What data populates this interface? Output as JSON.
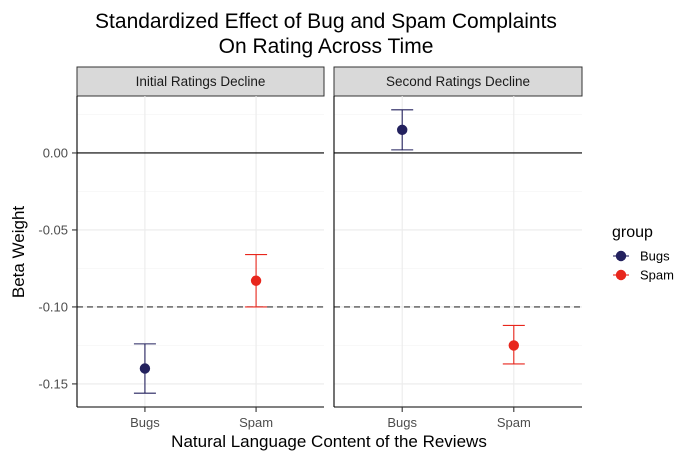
{
  "chart_data": {
    "type": "errorbar",
    "title": "Standardized Effect of Bug and Spam Complaints",
    "subtitle": "On Rating Across Time",
    "xlabel": "Natural Language Content of the Reviews",
    "ylabel": "Beta Weight",
    "categories": [
      "Bugs",
      "Spam"
    ],
    "ylim": [
      -0.165,
      0.037
    ],
    "yticks": [
      0.0,
      -0.05,
      -0.1,
      -0.15
    ],
    "ytick_labels": [
      "0.00",
      "-0.05",
      "-0.10",
      "-0.15"
    ],
    "reference_lines": {
      "solid": 0.0,
      "dashed": -0.1
    },
    "facets": [
      {
        "label": "Initial Ratings Decline",
        "points": [
          {
            "group": "Bugs",
            "value": -0.14,
            "lower": -0.156,
            "upper": -0.124
          },
          {
            "group": "Spam",
            "value": -0.083,
            "lower": -0.1,
            "upper": -0.066
          }
        ]
      },
      {
        "label": "Second Ratings Decline",
        "points": [
          {
            "group": "Bugs",
            "value": 0.015,
            "lower": 0.002,
            "upper": 0.028
          },
          {
            "group": "Spam",
            "value": -0.125,
            "lower": -0.137,
            "upper": -0.112
          }
        ]
      }
    ],
    "legend": {
      "title": "group",
      "position": "right",
      "items": [
        {
          "label": "Bugs",
          "color": "#23215e"
        },
        {
          "label": "Spam",
          "color": "#e8261c"
        }
      ]
    },
    "grid": true
  }
}
